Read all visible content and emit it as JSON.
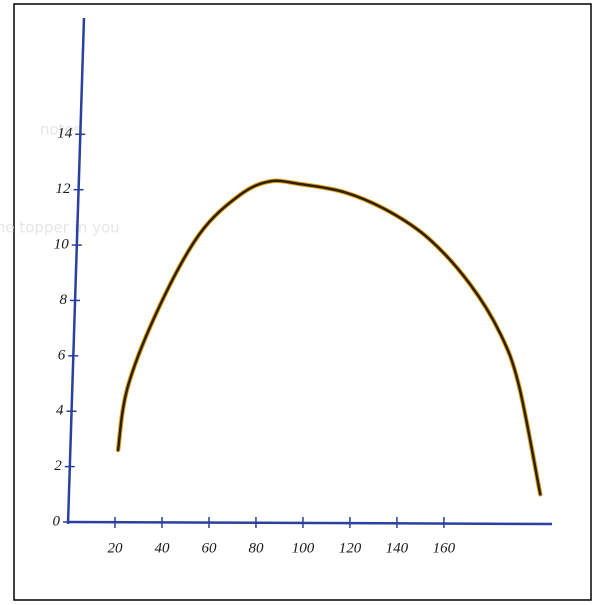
{
  "watermark": {
    "logo": "notes",
    "tagline": "the topper in you"
  },
  "chart_data": {
    "type": "line",
    "x": [
      21.3,
      25.5,
      39,
      56,
      73,
      86,
      99,
      118,
      137,
      154,
      171,
      184,
      192,
      201
    ],
    "values": [
      2.6,
      4.9,
      7.8,
      10.4,
      11.8,
      12.3,
      12.2,
      11.9,
      11.2,
      10.2,
      8.6,
      6.8,
      4.9,
      1.0
    ],
    "color": "#2e2100",
    "axis_color": "#2b3f9e",
    "xlim": [
      0,
      206
    ],
    "ylim": [
      0,
      18.2
    ],
    "xticks": [
      20,
      40,
      60,
      80,
      100,
      120,
      140,
      160
    ],
    "yticks": [
      0,
      2,
      4,
      6,
      8,
      10,
      12,
      14
    ]
  }
}
